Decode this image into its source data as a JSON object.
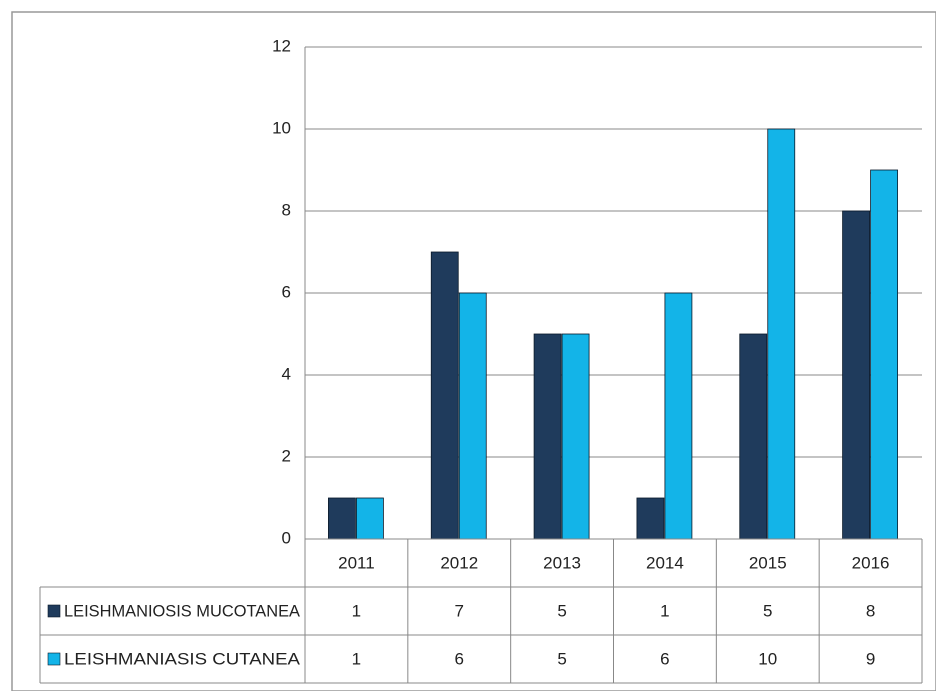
{
  "chart_data": {
    "type": "bar",
    "categories": [
      "2011",
      "2012",
      "2013",
      "2014",
      "2015",
      "2016"
    ],
    "series": [
      {
        "name": "LEISHMANIOSIS MUCOTANEA",
        "color": "#1f3b5c",
        "values": [
          1,
          7,
          5,
          1,
          5,
          8
        ]
      },
      {
        "name": "LEISHMANIASIS CUTANEA",
        "color": "#13b4e8",
        "values": [
          1,
          6,
          5,
          6,
          10,
          9
        ]
      }
    ],
    "ylim": [
      0,
      12
    ],
    "yticks": [
      0,
      2,
      4,
      6,
      8,
      10,
      12
    ],
    "grid": true,
    "data_table": true
  }
}
